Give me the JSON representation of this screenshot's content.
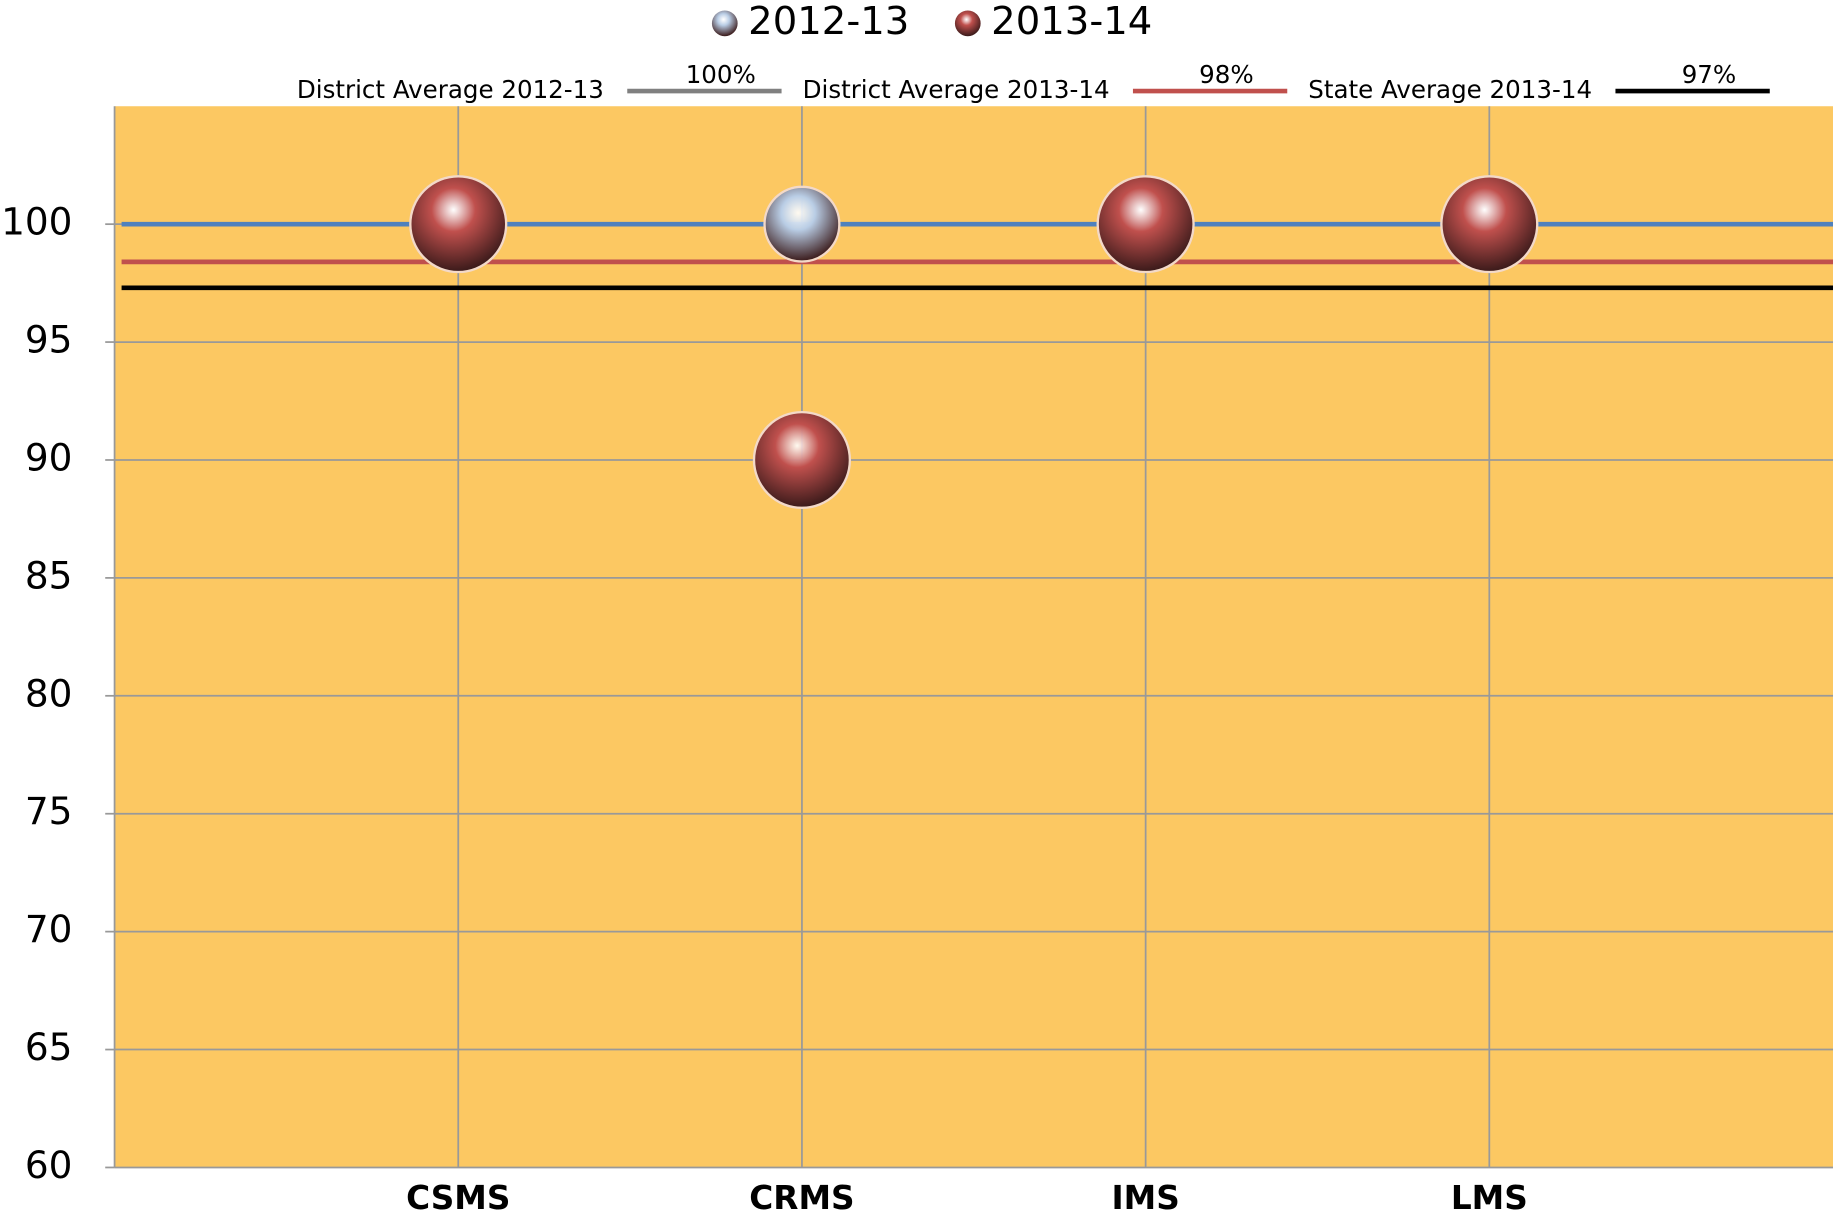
{
  "chart_data": {
    "type": "scatter",
    "categories": [
      "CSMS",
      "CRMS",
      "IMS",
      "LMS"
    ],
    "series": [
      {
        "name": "2012-13",
        "color": "#b9cde5",
        "values": [
          100,
          100,
          100,
          100
        ]
      },
      {
        "name": "2013-14",
        "color": "#c0504d",
        "values": [
          100,
          90,
          100,
          100
        ]
      }
    ],
    "reference_lines": [
      {
        "name": "District Average 2012-13",
        "value": 100,
        "label": "100%",
        "color": "#4f81bd",
        "legend_color": "#808080"
      },
      {
        "name": "District Average 2013-14",
        "value": 98.4,
        "label": "98%",
        "color": "#c0504d",
        "legend_color": "#c0504d"
      },
      {
        "name": "State Average 2013-14",
        "value": 97.3,
        "label": "97%",
        "color": "#000000",
        "legend_color": "#000000"
      }
    ],
    "ylim": [
      60,
      105
    ],
    "yticks": [
      60,
      65,
      70,
      75,
      80,
      85,
      90,
      95,
      100
    ],
    "grid": true,
    "background": "#fcc862",
    "legend": "top"
  }
}
